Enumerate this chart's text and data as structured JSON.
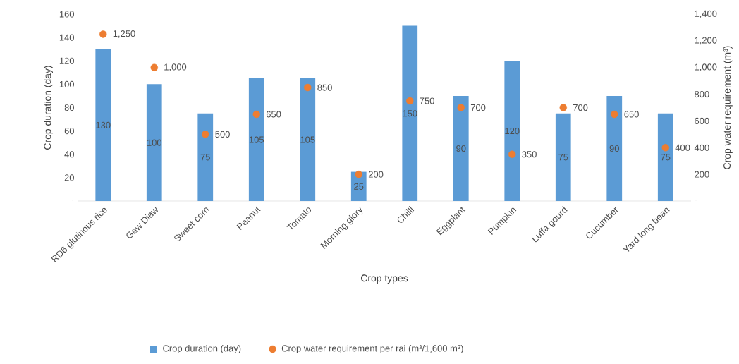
{
  "chart_data": {
    "type": "bar",
    "xlabel": "Crop types",
    "ylabel": "Crop duration (day)",
    "y2label": "Crop water requirement (m³)",
    "categories": [
      "RD6 glutinous rice",
      "Gaw Diaw",
      "Sweet corn",
      "Peanut",
      "Tomato",
      "Morning glory",
      "Chilli",
      "Eggplant",
      "Pumpkin",
      "Luffa gourd",
      "Cucumber",
      "Yard long bean"
    ],
    "ylim": [
      0,
      160
    ],
    "yticks": [
      {
        "value": 0,
        "label": "-"
      },
      20,
      40,
      60,
      80,
      100,
      120,
      140,
      160
    ],
    "y2lim": [
      0,
      1400
    ],
    "y2ticks": [
      {
        "value": 0,
        "label": "-"
      },
      200,
      400,
      600,
      800,
      {
        "value": 1000,
        "label": "1,000"
      },
      {
        "value": 1200,
        "label": "1,200"
      },
      {
        "value": 1400,
        "label": "1,400"
      }
    ],
    "legend": "bottom",
    "series": [
      {
        "name": "Crop duration (day)",
        "color": "#5b9bd5",
        "values": [
          130,
          100,
          75,
          105,
          105,
          25,
          150,
          90,
          120,
          75,
          90,
          75
        ],
        "value_labels": [
          "130",
          "100",
          "75",
          "105",
          "105",
          "25",
          "150",
          "90",
          "120",
          "75",
          "90",
          "75"
        ]
      },
      {
        "name": "Crop water requirement per rai (m³/1,600 m²)",
        "type": "scatter",
        "axis": "y2",
        "color": "#ed7d31",
        "marker": "circle",
        "values": [
          1250,
          1000,
          500,
          650,
          850,
          200,
          750,
          700,
          350,
          700,
          650,
          400
        ],
        "value_labels": [
          "1,250",
          "1,000",
          "500",
          "650",
          "850",
          "200",
          "750",
          "700",
          "350",
          "700",
          "650",
          "400"
        ]
      }
    ]
  }
}
